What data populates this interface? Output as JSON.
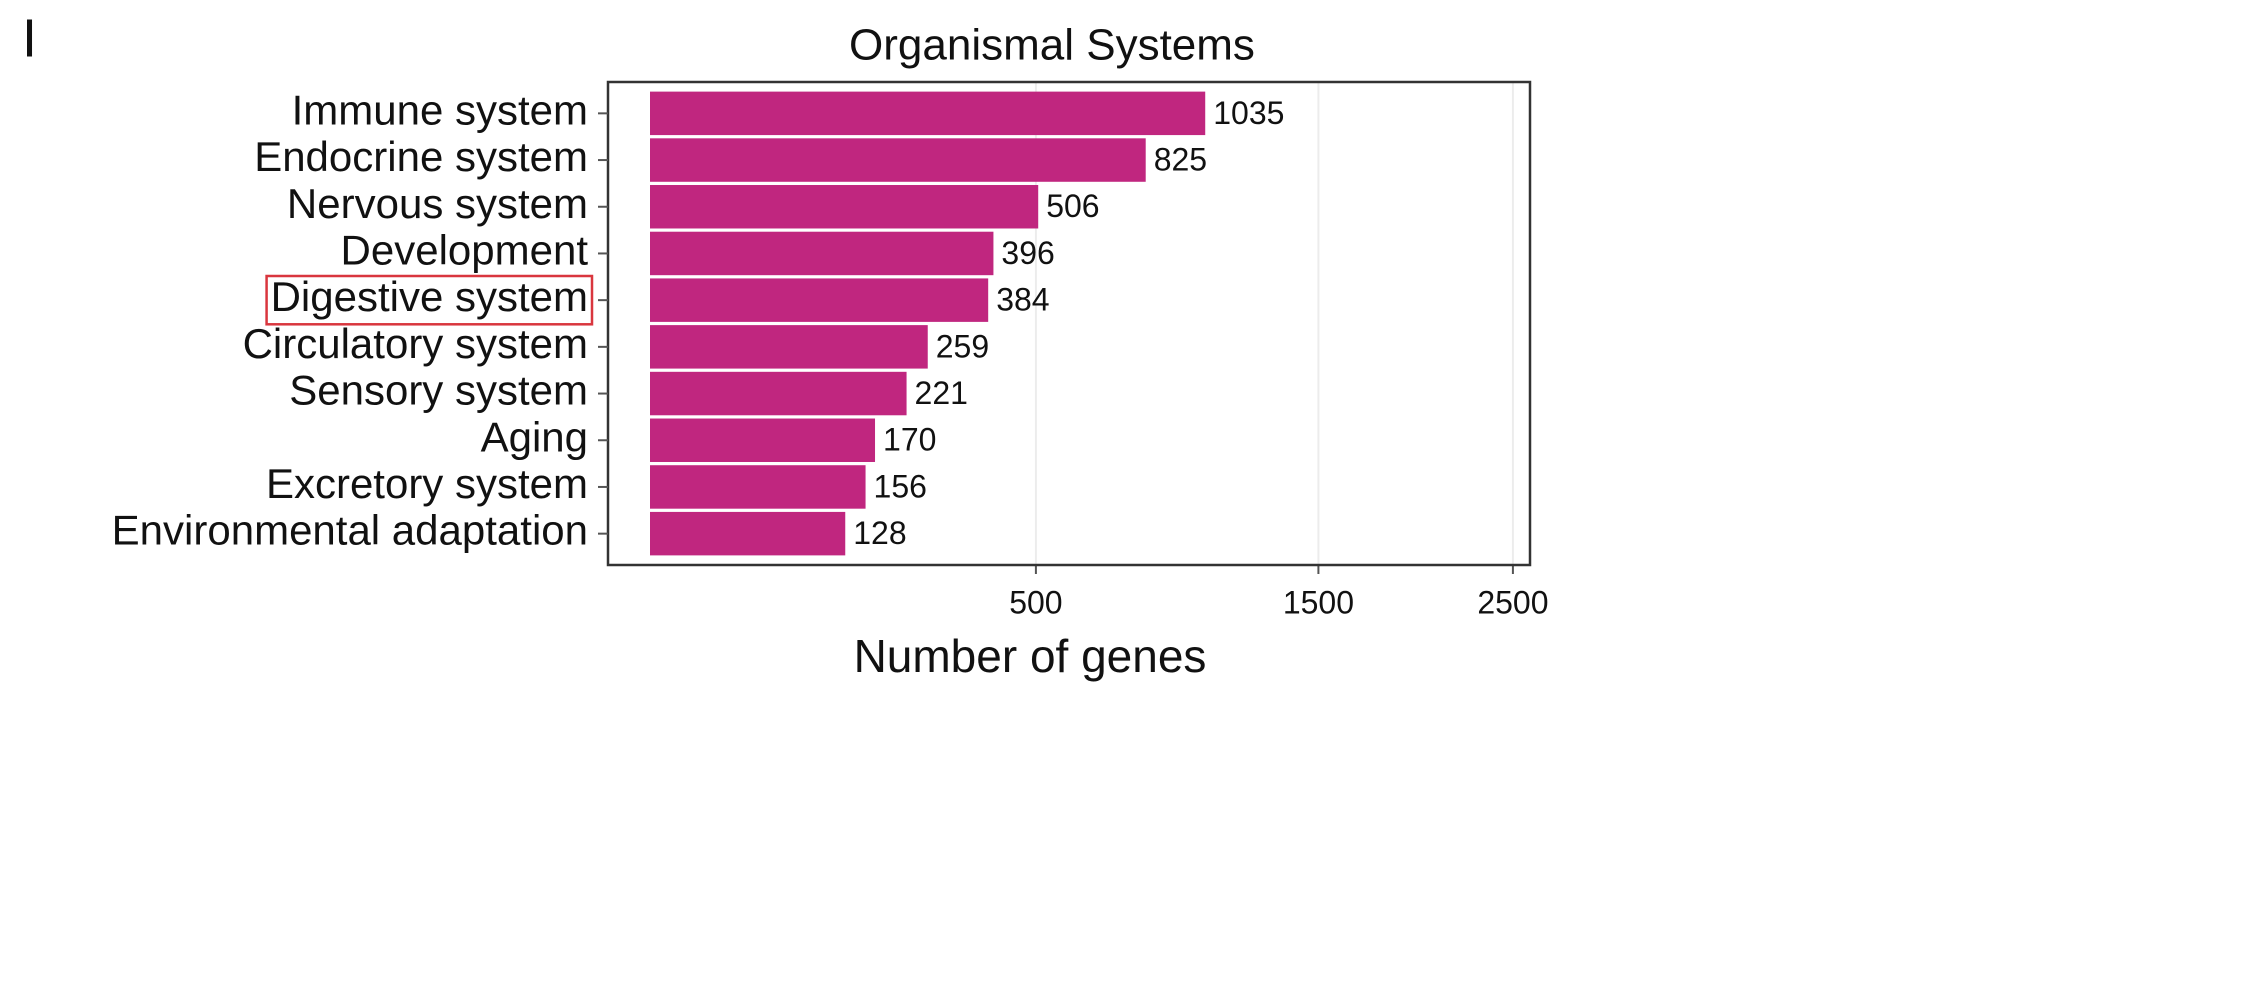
{
  "panel_label": "I",
  "chart_data": {
    "type": "barh",
    "title": "Organismal Systems",
    "xlabel": "Number of genes",
    "categories": [
      "Immune system",
      "Endocrine system",
      "Nervous system",
      "Development",
      "Digestive system",
      "Circulatory system",
      "Sensory system",
      "Aging",
      "Excretory system",
      "Environmental adaptation"
    ],
    "values": [
      1035,
      825,
      506,
      396,
      384,
      259,
      221,
      170,
      156,
      128
    ],
    "color": "#c0267f",
    "xscale": "sqrt",
    "xlim": [
      0,
      2600
    ],
    "xticks": [
      500,
      1500,
      2500
    ],
    "grid": true,
    "highlight": "Digestive system",
    "highlight_color": "#d9363e"
  }
}
